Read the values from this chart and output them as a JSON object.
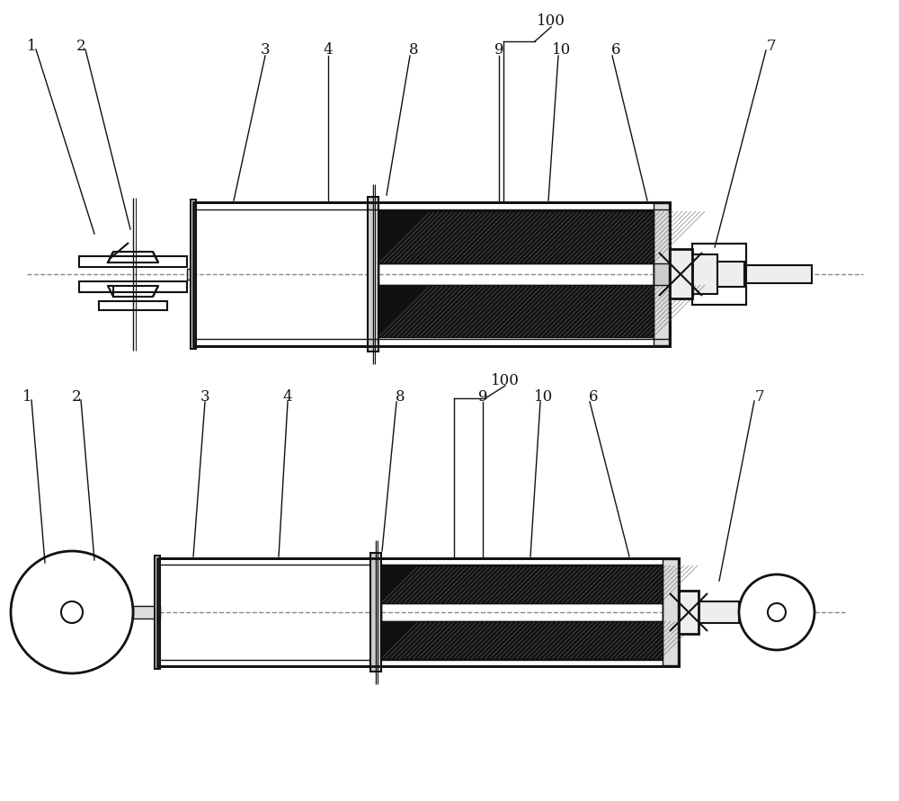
{
  "bg_color": "#ffffff",
  "line_color": "#111111",
  "fig_width": 10.0,
  "fig_height": 8.91,
  "dpi": 100
}
